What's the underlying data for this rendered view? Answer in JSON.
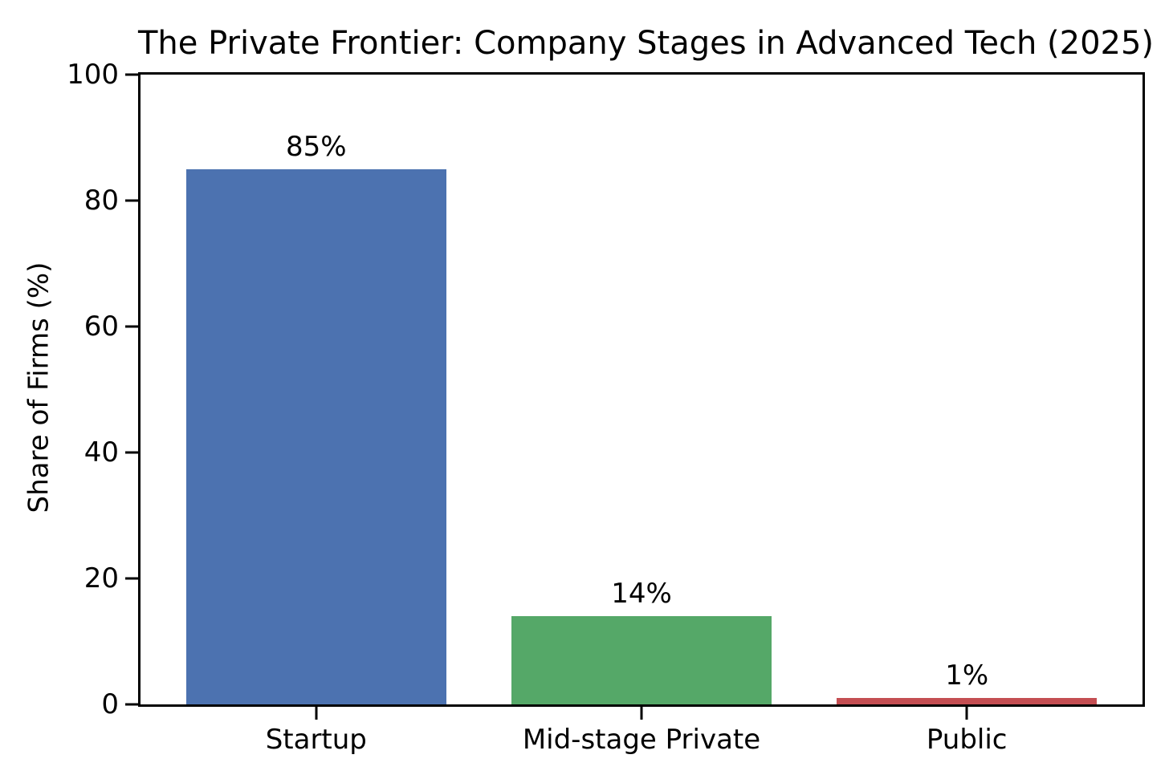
{
  "figure": {
    "background": "#ffffff",
    "text_color": "#000000",
    "axis_color": "#000000"
  },
  "chart_data": {
    "type": "bar",
    "title": "The Private Frontier: Company Stages in Advanced Tech (2025)",
    "xlabel": "",
    "ylabel": "Share of Firms (%)",
    "categories": [
      "Startup",
      "Mid-stage Private",
      "Public"
    ],
    "values": [
      85,
      14,
      1
    ],
    "bar_labels": [
      "85%",
      "14%",
      "1%"
    ],
    "bar_colors": [
      "#4c72b0",
      "#55a868",
      "#c44e52"
    ],
    "ylim": [
      0,
      100
    ],
    "yticks": [
      "0",
      "20",
      "40",
      "60",
      "80",
      "100"
    ],
    "ytick_values": [
      0,
      20,
      40,
      60,
      80,
      100
    ],
    "xlim": [
      -0.54,
      2.54
    ],
    "bar_width_units": 0.8,
    "grid": false,
    "legend": "none"
  }
}
